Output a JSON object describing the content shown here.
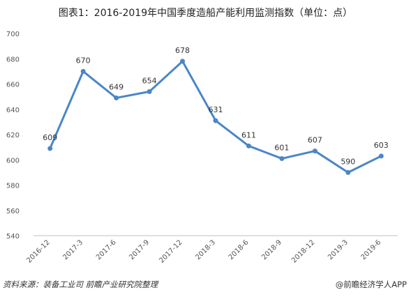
{
  "title": "图表1：2016-2019年中国季度造船产能利用监测指数（单位：点）",
  "source": "资料来源：装备工业司 前瞻产业研究院整理",
  "credit": "@前瞻经济学人APP",
  "colors": {
    "line": "#4a86c8",
    "grid": "#d9d9d9",
    "axis": "#bfbfbf"
  },
  "chart_data": {
    "type": "line",
    "title": "图表1：2016-2019年中国季度造船产能利用监测指数（单位：点）",
    "categories": [
      "2016-12",
      "2017-3",
      "2017-6",
      "2017-9",
      "2017-12",
      "2018-3",
      "2018-6",
      "2018-9",
      "2018-12",
      "2019-3",
      "2019-6"
    ],
    "series": [
      {
        "values": [
          609,
          670,
          649,
          654,
          678,
          631,
          611,
          601,
          607,
          590,
          603
        ]
      }
    ],
    "ylim": [
      540,
      700
    ],
    "yticks": [
      540,
      560,
      580,
      600,
      620,
      640,
      660,
      680,
      700
    ],
    "grid": false,
    "data_labels": true
  }
}
